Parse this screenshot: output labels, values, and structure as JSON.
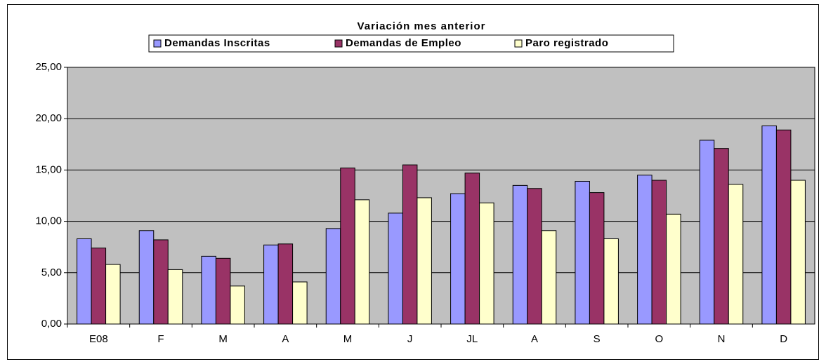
{
  "chart_data": {
    "type": "bar",
    "title": "Variación mes anterior",
    "categories": [
      "E08",
      "F",
      "M",
      "A",
      "M",
      "J",
      "JL",
      "A",
      "S",
      "O",
      "N",
      "D"
    ],
    "series": [
      {
        "name": "Demandas Inscritas",
        "color": "#9999ff",
        "values": [
          8.3,
          9.1,
          6.6,
          7.7,
          9.3,
          10.8,
          12.7,
          13.5,
          13.9,
          14.5,
          17.9,
          19.3
        ]
      },
      {
        "name": "Demandas de Empleo",
        "color": "#993366",
        "values": [
          7.4,
          8.2,
          6.4,
          7.8,
          15.2,
          15.5,
          14.7,
          13.2,
          12.8,
          14.0,
          17.1,
          18.9
        ]
      },
      {
        "name": "Paro registrado",
        "color": "#ffffcc",
        "values": [
          5.8,
          5.3,
          3.7,
          4.1,
          12.1,
          12.3,
          11.8,
          9.1,
          8.3,
          10.7,
          13.6,
          14.0
        ]
      }
    ],
    "ylim": [
      0,
      25
    ],
    "yticks": [
      {
        "value": 0,
        "label": "0,00"
      },
      {
        "value": 5,
        "label": "5,00"
      },
      {
        "value": 10,
        "label": "10,00"
      },
      {
        "value": 15,
        "label": "15,00"
      },
      {
        "value": 20,
        "label": "20,00"
      },
      {
        "value": 25,
        "label": "25,00"
      }
    ],
    "grid": true,
    "plot_background": "#c0c0c0",
    "legend": "top"
  }
}
